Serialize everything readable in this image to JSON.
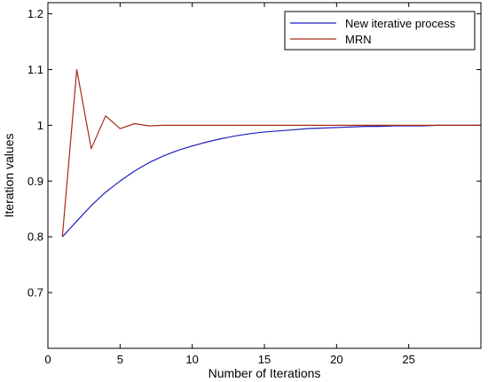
{
  "chart_data": {
    "type": "line",
    "xlabel": "Number of Iterations",
    "ylabel": "Iteration values",
    "xlim": [
      0,
      30
    ],
    "ylim": [
      0.6,
      1.22
    ],
    "xticks": [
      0,
      5,
      10,
      15,
      20,
      25
    ],
    "yticks": [
      0.7,
      0.8,
      0.9,
      1,
      1.1,
      1.2
    ],
    "ytick_labels": [
      "0.7",
      "0.8",
      "0.9",
      "1",
      "1.1",
      "1.2"
    ],
    "grid": false,
    "legend_position": "top-right",
    "series": [
      {
        "name": "New iterative process",
        "color": "#1f1fbf",
        "x": [
          1,
          2,
          3,
          4,
          5,
          6,
          7,
          8,
          9,
          10,
          11,
          12,
          13,
          14,
          15,
          16,
          17,
          18,
          19,
          20,
          21,
          22,
          23,
          24,
          25,
          26,
          27,
          28,
          29,
          30
        ],
        "y": [
          0.8,
          0.828,
          0.856,
          0.88,
          0.9,
          0.918,
          0.933,
          0.945,
          0.955,
          0.963,
          0.97,
          0.976,
          0.981,
          0.985,
          0.988,
          0.99,
          0.992,
          0.994,
          0.995,
          0.996,
          0.997,
          0.998,
          0.998,
          0.999,
          0.999,
          0.999,
          1.0,
          1.0,
          1.0,
          1.0
        ]
      },
      {
        "name": "MRN",
        "color": "#a52a1a",
        "x": [
          1,
          2,
          3,
          4,
          5,
          6,
          7,
          8,
          9,
          10,
          15,
          20,
          25,
          30
        ],
        "y": [
          0.8,
          1.1,
          0.958,
          1.017,
          0.994,
          1.003,
          0.999,
          1.0,
          1.0,
          1.0,
          1.0,
          1.0,
          1.0,
          1.0
        ]
      }
    ]
  }
}
